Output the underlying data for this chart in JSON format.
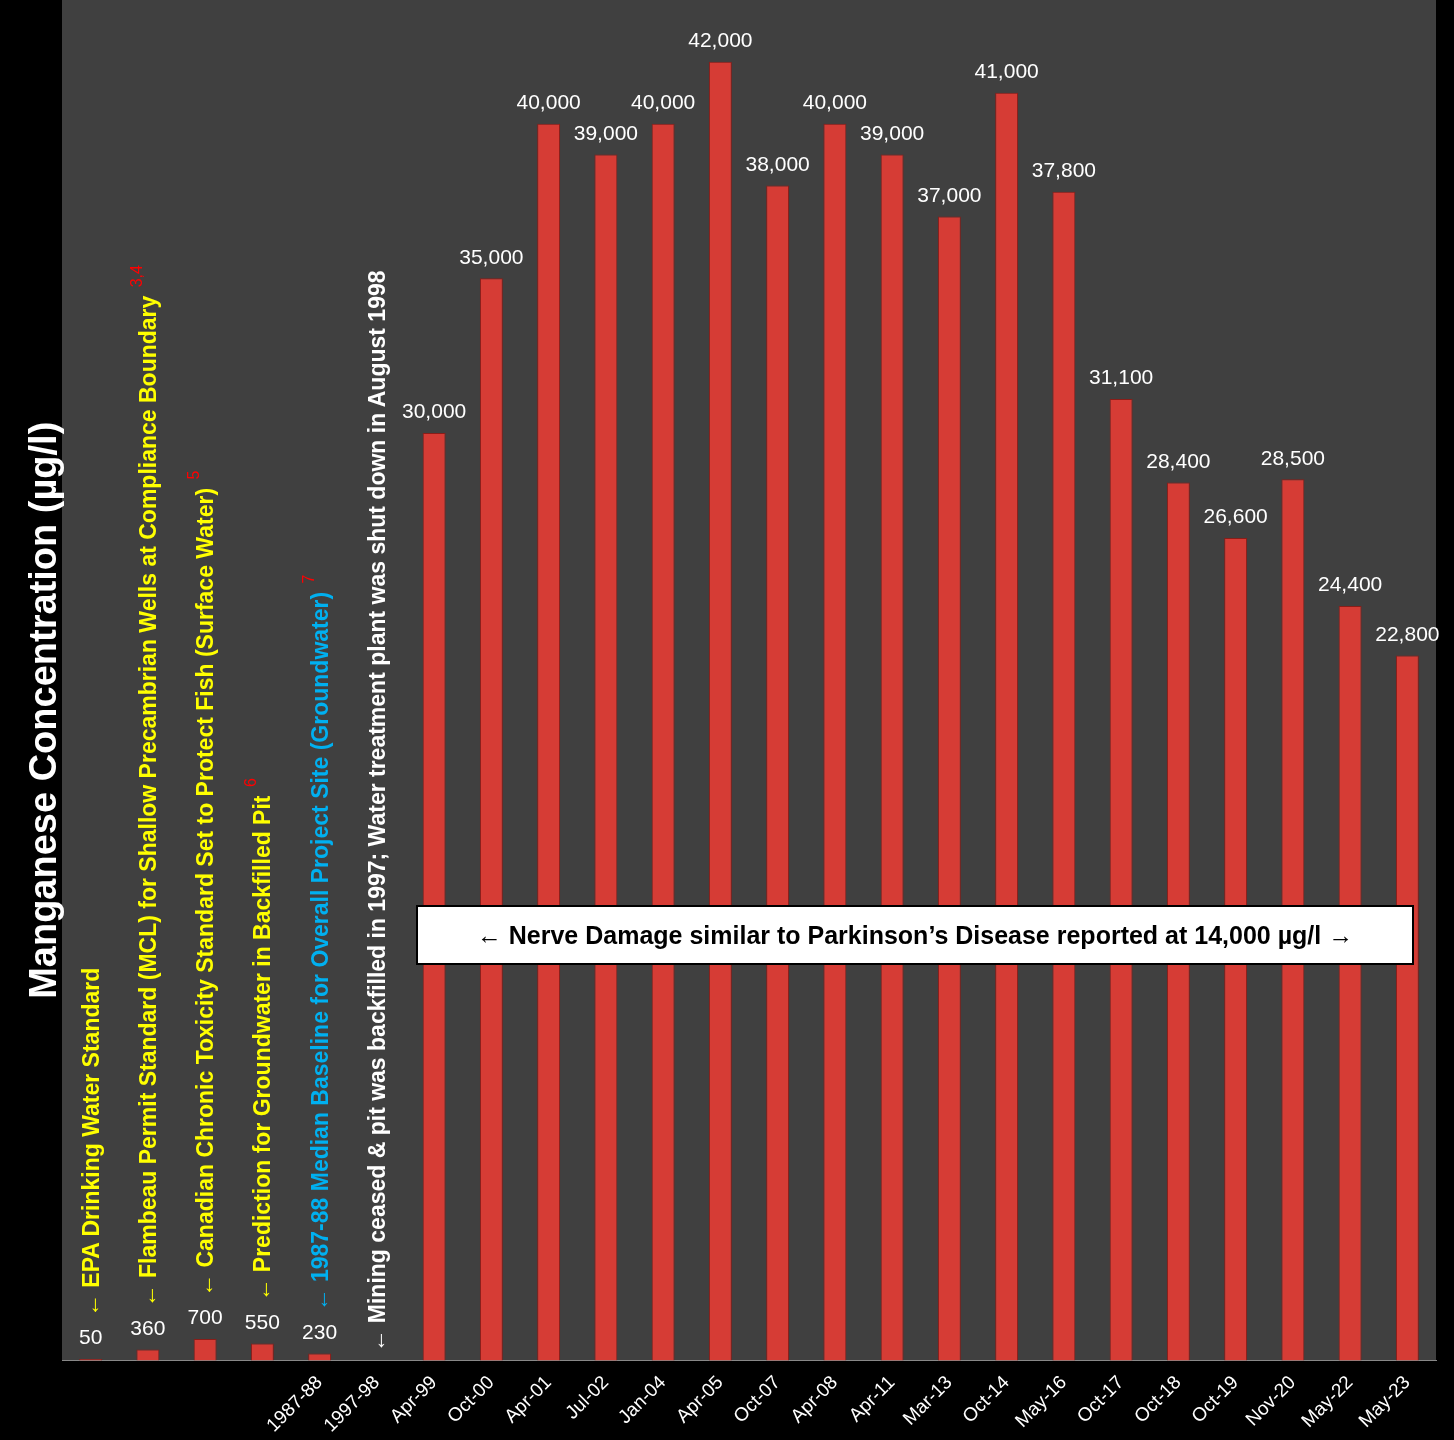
{
  "chart_data": {
    "type": "bar",
    "ylabel": "Manganese Concentration (µg/l)",
    "categories": [
      null,
      null,
      null,
      null,
      "1987-88",
      "1997-98",
      "Apr-99",
      "Oct-00",
      "Apr-01",
      "Jul-02",
      "Jan-04",
      "Apr-05",
      "Oct-07",
      "Apr-08",
      "Apr-11",
      "Mar-13",
      "Oct-14",
      "May-16",
      "Oct-17",
      "Oct-18",
      "Oct-19",
      "Nov-20",
      "May-22",
      "May-23"
    ],
    "values": [
      50,
      360,
      700,
      550,
      230,
      null,
      30000,
      35000,
      40000,
      39000,
      40000,
      42000,
      38000,
      40000,
      39000,
      37000,
      41000,
      37800,
      31100,
      28400,
      26600,
      28500,
      24400,
      22800
    ],
    "value_labels": [
      "50",
      "360",
      "700",
      "550",
      "230",
      null,
      "30,000",
      "35,000",
      "40,000",
      "39,000",
      "40,000",
      "42,000",
      "38,000",
      "40,000",
      "39,000",
      "37,000",
      "41,000",
      "37,800",
      "31,100",
      "28,400",
      "26,600",
      "28,500",
      "24,400",
      "22,800"
    ],
    "color": "#d63c35",
    "ylim": [
      0,
      44000
    ],
    "legend": false,
    "grid": false,
    "annotations": [
      "← EPA Drinking Water Standard",
      "← Flambeau Permit Standard (MCL) for Shallow Precambrian Wells at Compliance Boundary $^{3,4}$",
      "← Canadian Chronic Toxicity Standard Set to Protect Fish (Surface Water) $^{5}$",
      "← Prediction for Groundwater in Backfilled Pit $^{6}$",
      "← 1987-88 Median Baseline for Overall Project Site (Groundwater) $^{7}$",
      "← Mining ceased & pit was backfilled in 1997; Water treatment plant was shut down in August 1998",
      "← Nerve Damage similar to Parkinson’s Disease reported at 14,000 µg/l →"
    ]
  }
}
